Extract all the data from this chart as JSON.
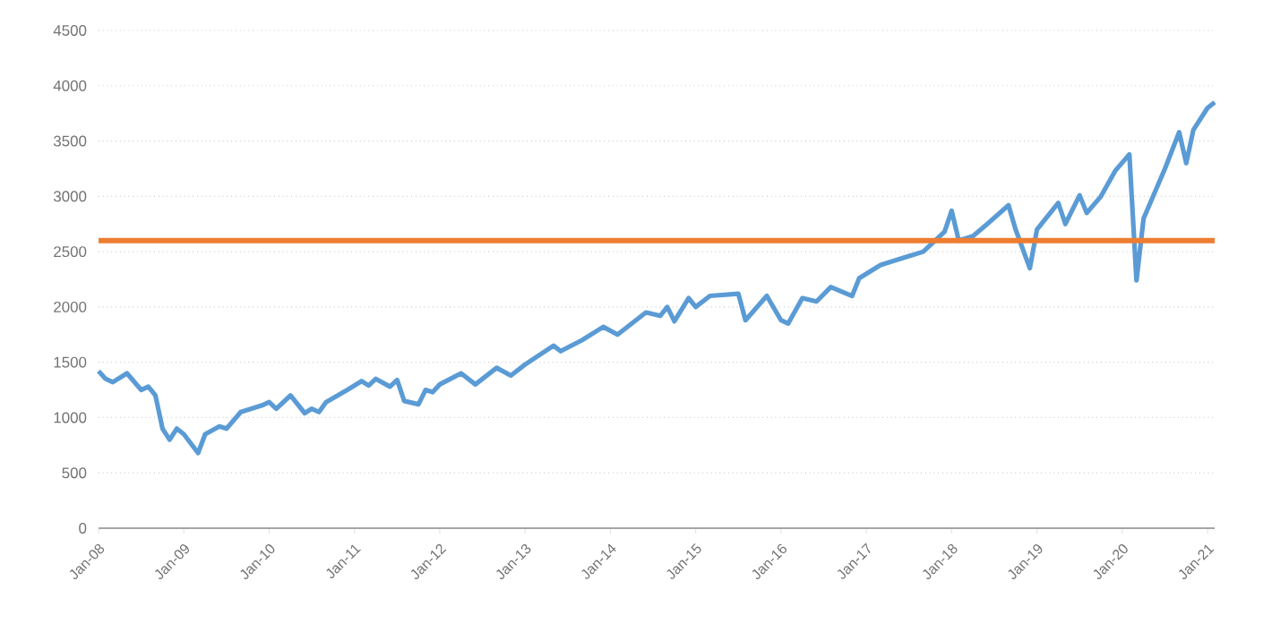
{
  "chart_data": {
    "type": "line",
    "x": [
      "2008-01",
      "2008-02",
      "2008-03",
      "2008-05",
      "2008-07",
      "2008-08",
      "2008-09",
      "2008-10",
      "2008-11",
      "2008-12",
      "2009-01",
      "2009-03",
      "2009-04",
      "2009-06",
      "2009-07",
      "2009-09",
      "2009-12",
      "2010-01",
      "2010-02",
      "2010-04",
      "2010-06",
      "2010-07",
      "2010-08",
      "2010-09",
      "2010-12",
      "2011-02",
      "2011-03",
      "2011-04",
      "2011-06",
      "2011-07",
      "2011-08",
      "2011-10",
      "2011-11",
      "2011-12",
      "2012-01",
      "2012-04",
      "2012-06",
      "2012-09",
      "2012-11",
      "2013-01",
      "2013-05",
      "2013-06",
      "2013-09",
      "2013-12",
      "2014-02",
      "2014-06",
      "2014-08",
      "2014-09",
      "2014-10",
      "2014-12",
      "2015-01",
      "2015-03",
      "2015-07",
      "2015-08",
      "2015-11",
      "2016-01",
      "2016-02",
      "2016-04",
      "2016-06",
      "2016-08",
      "2016-11",
      "2016-12",
      "2017-03",
      "2017-06",
      "2017-09",
      "2017-12",
      "2018-01",
      "2018-02",
      "2018-04",
      "2018-06",
      "2018-09",
      "2018-10",
      "2018-12",
      "2019-01",
      "2019-04",
      "2019-05",
      "2019-07",
      "2019-08",
      "2019-10",
      "2019-12",
      "2020-02",
      "2020-03",
      "2020-04",
      "2020-06",
      "2020-07",
      "2020-09",
      "2020-10",
      "2020-11",
      "2021-01",
      "2021-02"
    ],
    "series": [
      {
        "color": "#5b9bd5",
        "values": [
          1420,
          1350,
          1320,
          1400,
          1250,
          1280,
          1200,
          900,
          800,
          900,
          850,
          680,
          850,
          920,
          900,
          1050,
          1110,
          1140,
          1080,
          1200,
          1040,
          1080,
          1050,
          1140,
          1250,
          1330,
          1290,
          1350,
          1280,
          1340,
          1150,
          1120,
          1250,
          1230,
          1300,
          1400,
          1300,
          1450,
          1380,
          1480,
          1650,
          1600,
          1700,
          1820,
          1750,
          1950,
          1920,
          2000,
          1870,
          2080,
          2000,
          2100,
          2120,
          1880,
          2100,
          1880,
          1850,
          2080,
          2050,
          2180,
          2100,
          2260,
          2380,
          2440,
          2500,
          2680,
          2870,
          2600,
          2640,
          2750,
          2920,
          2700,
          2350,
          2700,
          2940,
          2750,
          3010,
          2850,
          3000,
          3230,
          3380,
          2240,
          2800,
          3100,
          3250,
          3580,
          3300,
          3600,
          3800,
          3850
        ]
      }
    ],
    "xlim": [
      "2008-01-01",
      "2021-02-01"
    ],
    "ylim": [
      0,
      4500
    ],
    "xticks": [
      {
        "value": "2008-01-01",
        "label": "Jan-08"
      },
      {
        "value": "2009-01-01",
        "label": "Jan-09"
      },
      {
        "value": "2010-01-01",
        "label": "Jan-10"
      },
      {
        "value": "2011-01-01",
        "label": "Jan-11"
      },
      {
        "value": "2012-01-01",
        "label": "Jan-12"
      },
      {
        "value": "2013-01-01",
        "label": "Jan-13"
      },
      {
        "value": "2014-01-01",
        "label": "Jan-14"
      },
      {
        "value": "2015-01-01",
        "label": "Jan-15"
      },
      {
        "value": "2016-01-01",
        "label": "Jan-16"
      },
      {
        "value": "2017-01-01",
        "label": "Jan-17"
      },
      {
        "value": "2018-01-01",
        "label": "Jan-18"
      },
      {
        "value": "2019-01-01",
        "label": "Jan-19"
      },
      {
        "value": "2020-01-01",
        "label": "Jan-20"
      },
      {
        "value": "2021-01-01",
        "label": "Jan-21"
      }
    ],
    "yticks": [
      0,
      500,
      1000,
      1500,
      2000,
      2500,
      3000,
      3500,
      4000,
      4500
    ],
    "grid": "y",
    "ref_lines": [
      {
        "axis": "y",
        "value": 2600,
        "color": "#ed7d31"
      }
    ]
  }
}
